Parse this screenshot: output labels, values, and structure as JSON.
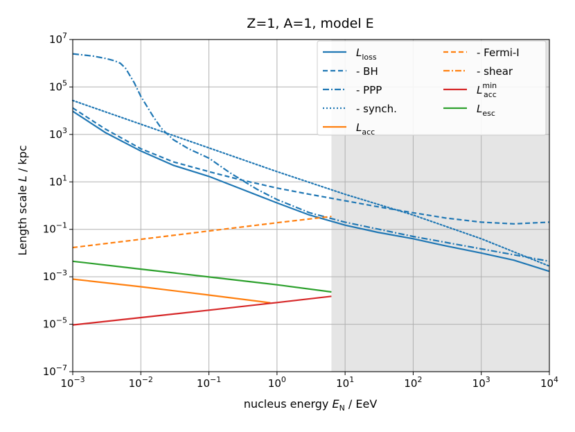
{
  "chart_data": {
    "type": "line",
    "title": "Z=1, A=1, model E",
    "xlabel": {
      "prefix": "nucleus energy ",
      "sym": "E",
      "sub": "N",
      "suffix": " / EeV"
    },
    "ylabel": {
      "prefix": "Length scale ",
      "sym": "L",
      "suffix": " / kpc"
    },
    "x_scale": "log",
    "y_scale": "log",
    "xlim": [
      0.001,
      10000
    ],
    "ylim": [
      1e-07,
      10000000.0
    ],
    "x_ticks": [
      {
        "exp": "-3"
      },
      {
        "exp": "-2"
      },
      {
        "exp": "-1"
      },
      {
        "exp": "0"
      },
      {
        "exp": "1"
      },
      {
        "exp": "2"
      },
      {
        "exp": "3"
      },
      {
        "exp": "4"
      }
    ],
    "y_ticks": [
      {
        "exp": "-7"
      },
      {
        "exp": "-5"
      },
      {
        "exp": "-3"
      },
      {
        "exp": "-1"
      },
      {
        "exp": "1"
      },
      {
        "exp": "3"
      },
      {
        "exp": "5"
      },
      {
        "exp": "7"
      }
    ],
    "tick_base": "10",
    "grid": true,
    "shaded_region": {
      "x_from": 6.3,
      "x_to": 10000,
      "color": "#e5e5e5"
    },
    "legend": {
      "location": "top-right",
      "columns": 2
    },
    "series": [
      {
        "id": "loss",
        "name": "L_loss",
        "legend": {
          "sym": "L",
          "sub": "loss"
        },
        "color": "#1f77b4",
        "style": "solid",
        "x": [
          0.001,
          0.003,
          0.01,
          0.03,
          0.1,
          0.3,
          1,
          3,
          10,
          30,
          100,
          300,
          1000,
          3000,
          10000
        ],
        "y": [
          9500,
          1200,
          200,
          50,
          17,
          5,
          1.3,
          0.4,
          0.15,
          0.075,
          0.04,
          0.02,
          0.01,
          0.005,
          0.0017
        ]
      },
      {
        "id": "bh",
        "name": "- BH",
        "legend": {
          "text": "  - BH"
        },
        "color": "#1f77b4",
        "style": "dashed",
        "x": [
          0.001,
          0.003,
          0.01,
          0.03,
          0.1,
          0.3,
          1,
          3,
          10,
          30,
          100,
          300,
          1000,
          3000,
          10000
        ],
        "y": [
          13000,
          1700,
          250,
          70,
          27,
          12,
          5.5,
          3,
          1.6,
          0.9,
          0.5,
          0.3,
          0.2,
          0.17,
          0.2
        ]
      },
      {
        "id": "ppp",
        "name": "- PPP",
        "legend": {
          "text": "  - PPP"
        },
        "color": "#1f77b4",
        "style": "dashdot",
        "x": [
          0.001,
          0.002,
          0.003,
          0.004,
          0.005,
          0.006,
          0.008,
          0.01,
          0.015,
          0.02,
          0.03,
          0.05,
          0.1,
          0.2,
          0.5,
          1,
          3,
          10,
          100,
          1000,
          10000
        ],
        "y": [
          2500000,
          2000000,
          1600000,
          1300000,
          1000000,
          600000,
          150000,
          40000,
          6000,
          1800,
          600,
          250,
          100,
          25,
          5,
          1.8,
          0.5,
          0.2,
          0.05,
          0.015,
          0.0045
        ]
      },
      {
        "id": "synch",
        "name": "- synch.",
        "legend": {
          "text": "  - synch."
        },
        "color": "#1f77b4",
        "style": "dotted",
        "x": [
          0.001,
          0.01,
          0.1,
          1,
          10,
          100,
          1000,
          10000
        ],
        "y": [
          27000,
          2700,
          270,
          27,
          3,
          0.4,
          0.04,
          0.0028
        ]
      },
      {
        "id": "acc",
        "name": "L_acc",
        "legend": {
          "sym": "L",
          "sub": "acc"
        },
        "color": "#ff7f0e",
        "style": "solid",
        "x": [
          0.001,
          0.01,
          0.1,
          0.8
        ],
        "y": [
          0.0008,
          0.00038,
          0.00017,
          8e-05
        ]
      },
      {
        "id": "fermi",
        "name": "- Fermi-I",
        "legend": {
          "text": "  - Fermi-I"
        },
        "color": "#ff7f0e",
        "style": "dashed",
        "x": [
          0.001,
          0.01,
          0.1,
          1,
          6.3
        ],
        "y": [
          0.017,
          0.038,
          0.085,
          0.19,
          0.35
        ]
      },
      {
        "id": "shear",
        "name": "- shear",
        "legend": {
          "text": "  - shear"
        },
        "color": "#ff7f0e",
        "style": "dashdot",
        "x": [],
        "y": []
      },
      {
        "id": "accmin",
        "name": "L_acc^min",
        "legend": {
          "sym": "L",
          "sub": "acc",
          "sup": "min"
        },
        "color": "#d62728",
        "style": "solid",
        "x": [
          0.001,
          0.01,
          0.1,
          1,
          6.3
        ],
        "y": [
          9.3e-06,
          1.9e-05,
          3.9e-05,
          8.2e-05,
          0.00015
        ]
      },
      {
        "id": "esc",
        "name": "L_esc",
        "legend": {
          "sym": "L",
          "sub": "esc"
        },
        "color": "#2ca02c",
        "style": "solid",
        "x": [
          0.001,
          0.01,
          0.1,
          1,
          6.3
        ],
        "y": [
          0.0045,
          0.0021,
          0.00098,
          0.00046,
          0.00023
        ]
      }
    ]
  }
}
